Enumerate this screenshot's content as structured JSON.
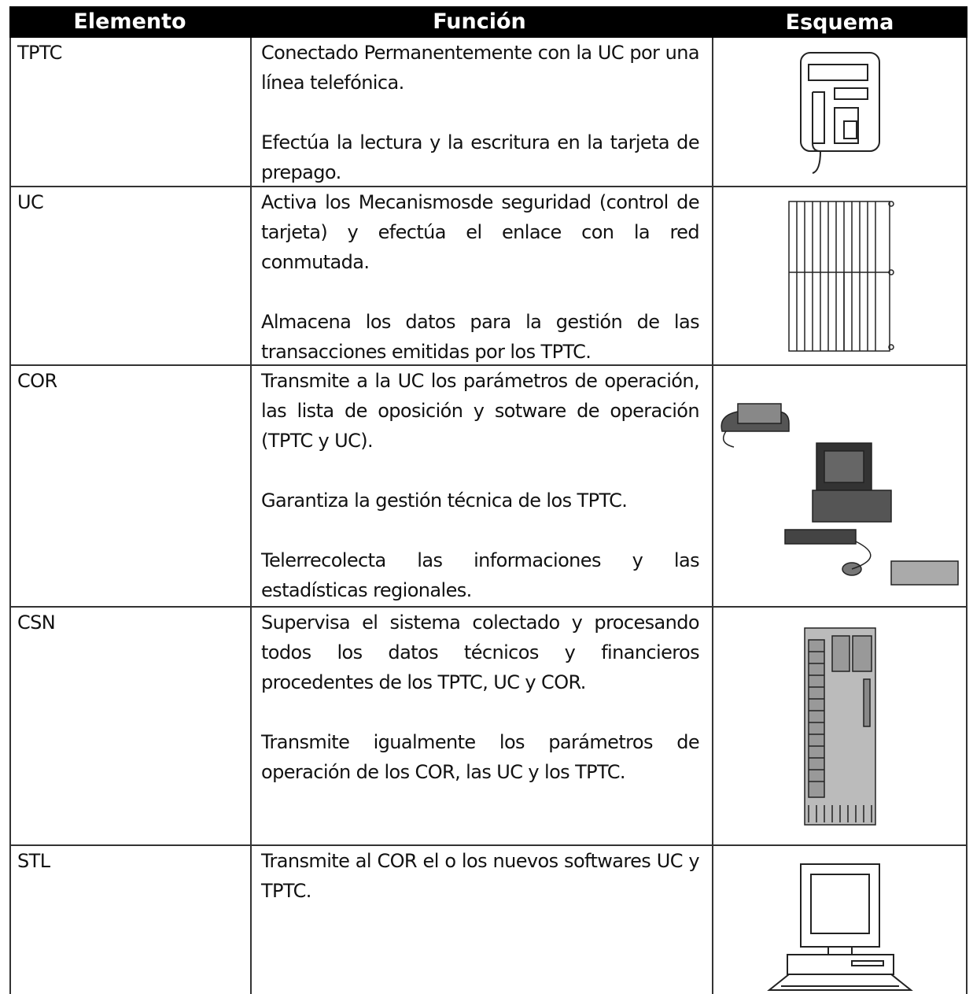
{
  "table": {
    "header": [
      "Elemento",
      "Función",
      "Esquema"
    ],
    "rows": [
      {
        "element": "TPTC",
        "function": [
          "Conectado Permanentemente con la UC por una línea telefónica.",
          "Efectúa la lectura y la escritura en la tarjeta de prepago."
        ]
      },
      {
        "element": "UC",
        "function": [
          "Activa los Mecanismosde seguridad (control de tarjeta) y efectúa el enlace con la red conmutada.",
          "Almacena los datos para la gestión de las transacciones emitidas por los TPTC."
        ]
      },
      {
        "element": "COR",
        "function": [
          "Transmite a la UC los parámetros de operación, las lista de oposición y sotware de operación (TPTC y UC).",
          "Garantiza la gestión técnica de los TPTC.",
          "Telerrecolecta las informaciones y las estadísticas regionales."
        ]
      },
      {
        "element": "CSN",
        "function": [
          "Supervisa el sistema colectado y procesando todos los datos técnicos y financieros procedentes de los TPTC, UC y COR.",
          "Transmite igualmente los parámetros de operación de los COR,  las UC y los TPTC."
        ]
      },
      {
        "element": "STL",
        "function": [
          "Transmite al COR el o los nuevos softwares UC y TPTC."
        ]
      }
    ]
  }
}
